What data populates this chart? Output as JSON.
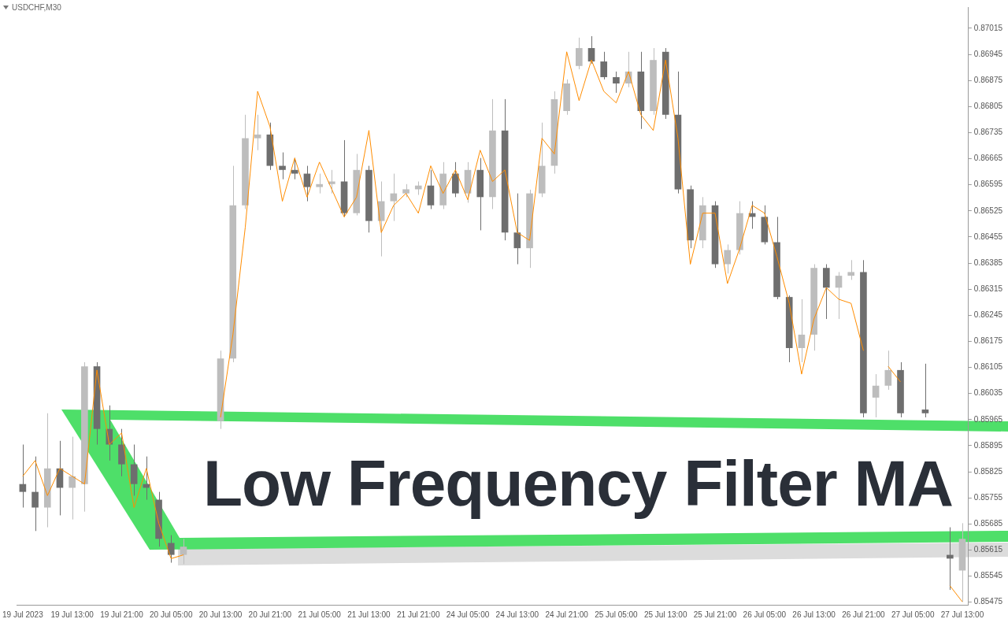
{
  "chart_data": {
    "type": "candlestick",
    "title": "Low Frequency Filter MA",
    "subtitle": "USDCHF,M30",
    "categories": [
      "19 Jul 2023",
      null,
      null,
      null,
      "19 Jul 13:00",
      null,
      null,
      null,
      "19 Jul 21:00",
      null,
      null,
      null,
      "20 Jul 05:00",
      null,
      null,
      null,
      "20 Jul 13:00",
      null,
      null,
      null,
      "20 Jul 21:00",
      null,
      null,
      null,
      "21 Jul 05:00",
      null,
      null,
      null,
      "21 Jul 13:00",
      null,
      null,
      null,
      "21 Jul 21:00",
      null,
      null,
      null,
      "24 Jul 05:00",
      null,
      null,
      null,
      "24 Jul 13:00",
      null,
      null,
      null,
      "24 Jul 21:00",
      null,
      null,
      null,
      "25 Jul 05:00",
      null,
      null,
      null,
      "25 Jul 13:00",
      null,
      null,
      null,
      "25 Jul 21:00",
      null,
      null,
      null,
      "26 Jul 05:00",
      null,
      null,
      null,
      "26 Jul 13:00",
      null,
      null,
      null,
      "26 Jul 21:00",
      null,
      null,
      null,
      "27 Jul 05:00",
      null,
      null,
      null,
      "27 Jul 13:00"
    ],
    "series": [
      {
        "type": "candlestick",
        "ohlc": [
          [
            0.85792,
            0.85898,
            0.85729,
            0.85771
          ],
          [
            0.85771,
            0.85866,
            0.85666,
            0.85729
          ],
          [
            0.85729,
            0.85982,
            0.85676,
            0.85834
          ],
          [
            0.85834,
            0.85908,
            0.85708,
            0.85782
          ],
          [
            0.85782,
            0.85919,
            0.85697,
            0.85813
          ],
          [
            0.85792,
            0.86119,
            0.85718,
            0.86108
          ],
          [
            0.86108,
            0.86119,
            0.85898,
            0.8594
          ],
          [
            0.8594,
            0.86003,
            0.85855,
            0.85898
          ],
          [
            0.85898,
            0.8594,
            0.85813,
            0.85845
          ],
          [
            0.85845,
            0.85898,
            0.85761,
            0.85792
          ],
          [
            0.85792,
            0.85866,
            0.8575,
            0.85782
          ],
          [
            0.8575,
            0.85771,
            0.85624,
            0.85645
          ],
          [
            0.85634,
            0.85655,
            0.85581,
            0.85602
          ],
          [
            0.85602,
            0.85645,
            0.85577,
            0.85624
          ],
          null,
          null,
          [
            0.85961,
            0.8615,
            0.8594,
            0.86129
          ],
          [
            0.86129,
            0.86646,
            0.86119,
            0.8654
          ],
          [
            0.8654,
            0.86783,
            0.8653,
            0.8672
          ],
          [
            0.8672,
            0.86783,
            0.86688,
            0.8673
          ],
          [
            0.8673,
            0.86762,
            0.86635,
            0.86646
          ],
          [
            0.86646,
            0.86682,
            0.8661,
            0.86635
          ],
          [
            0.86635,
            0.86667,
            0.8661,
            0.86625
          ],
          [
            0.86625,
            0.86646,
            0.86551,
            0.86589
          ],
          [
            0.86589,
            0.86625,
            0.86572,
            0.86597
          ],
          [
            0.86597,
            0.86635,
            0.86572,
            0.86604
          ],
          [
            0.86604,
            0.86715,
            0.86509,
            0.86519
          ],
          [
            0.86519,
            0.86678,
            0.86513,
            0.86635
          ],
          [
            0.86635,
            0.86646,
            0.86467,
            0.86498
          ],
          [
            0.86498,
            0.86604,
            0.86403,
            0.86551
          ],
          [
            0.86551,
            0.86625,
            0.86498,
            0.86572
          ],
          [
            0.86572,
            0.86597,
            0.86562,
            0.86583
          ],
          [
            0.86583,
            0.86604,
            0.86568,
            0.86593
          ],
          [
            0.86593,
            0.86635,
            0.8653,
            0.8654
          ],
          [
            0.8654,
            0.86656,
            0.8653,
            0.86625
          ],
          [
            0.86625,
            0.86656,
            0.86562,
            0.86572
          ],
          [
            0.86572,
            0.86656,
            0.86547,
            0.86635
          ],
          [
            0.86635,
            0.86667,
            0.86473,
            0.86562
          ],
          [
            0.86562,
            0.86825,
            0.8653,
            0.86741
          ],
          [
            0.86741,
            0.86825,
            0.86446,
            0.86467
          ],
          [
            0.86467,
            0.86572,
            0.86382,
            0.86425
          ],
          [
            0.86425,
            0.86582,
            0.86372,
            0.86572
          ],
          [
            0.86572,
            0.86762,
            0.86562,
            0.86646
          ],
          [
            0.86646,
            0.86846,
            0.86625,
            0.86825
          ],
          [
            0.86793,
            0.86878,
            0.86783,
            0.86867
          ],
          [
            0.86914,
            0.8699,
            0.86905,
            0.86962
          ],
          [
            0.86962,
            0.86994,
            0.8692,
            0.86926
          ],
          [
            0.86926,
            0.86952,
            0.86878,
            0.86884
          ],
          [
            0.86884,
            0.86899,
            0.86842,
            0.86867
          ],
          [
            0.86867,
            0.86952,
            0.86857,
            0.86899
          ],
          [
            0.86899,
            0.86952,
            0.86745,
            0.86793
          ],
          [
            0.86793,
            0.86962,
            0.86783,
            0.8693
          ],
          [
            0.86952,
            0.86962,
            0.86772,
            0.86783
          ],
          [
            0.86783,
            0.86899,
            0.86572,
            0.86583
          ],
          [
            0.86583,
            0.86593,
            0.86425,
            0.86446
          ],
          [
            0.86446,
            0.86562,
            0.86425,
            0.8654
          ],
          [
            0.8654,
            0.86551,
            0.86372,
            0.86382
          ],
          [
            0.86382,
            0.86435,
            0.86357,
            0.8642
          ],
          [
            0.8642,
            0.86551,
            0.86408,
            0.86519
          ],
          [
            0.86519,
            0.86551,
            0.86477,
            0.86509
          ],
          [
            0.86509,
            0.8654,
            0.86435,
            0.86441
          ],
          [
            0.86441,
            0.86509,
            0.86288,
            0.86294
          ],
          [
            0.86294,
            0.86298,
            0.86119,
            0.86157
          ],
          [
            0.86157,
            0.86288,
            0.86119,
            0.86193
          ],
          [
            0.86193,
            0.86382,
            0.8615,
            0.86372
          ],
          [
            0.86372,
            0.86382,
            0.86235,
            0.86319
          ],
          [
            0.86319,
            0.86361,
            0.86235,
            0.86351
          ],
          [
            0.86351,
            0.86393,
            0.8634,
            0.86361
          ],
          [
            0.86361,
            0.86393,
            0.85971,
            0.85982
          ],
          [
            0.86024,
            0.86087,
            0.85971,
            0.86056
          ],
          [
            0.86056,
            0.8615,
            0.86045,
            0.86098
          ],
          [
            0.86098,
            0.86119,
            0.85971,
            0.85982
          ],
          null,
          [
            0.85992,
            0.86115,
            0.85971,
            0.85982
          ],
          null,
          [
            0.85602,
            0.85676,
            0.85508,
            0.85592
          ],
          [
            0.8556,
            0.85687,
            0.85476,
            0.85645
          ]
        ],
        "colors": [
          "#6e6e6e",
          "#6e6e6e",
          "#bdbdbd",
          "#6e6e6e",
          "#bdbdbd",
          "#bdbdbd",
          "#6e6e6e",
          "#6e6e6e",
          "#6e6e6e",
          "#6e6e6e",
          "#6e6e6e",
          "#6e6e6e",
          "#6e6e6e",
          "#bdbdbd",
          null,
          null,
          "#bdbdbd",
          "#bdbdbd",
          "#bdbdbd",
          "#bdbdbd",
          "#6e6e6e",
          "#6e6e6e",
          "#6e6e6e",
          "#6e6e6e",
          "#bdbdbd",
          "#bdbdbd",
          "#6e6e6e",
          "#bdbdbd",
          "#6e6e6e",
          "#bdbdbd",
          "#bdbdbd",
          "#bdbdbd",
          "#bdbdbd",
          "#6e6e6e",
          "#bdbdbd",
          "#6e6e6e",
          "#bdbdbd",
          "#6e6e6e",
          "#bdbdbd",
          "#6e6e6e",
          "#6e6e6e",
          "#bdbdbd",
          "#bdbdbd",
          "#bdbdbd",
          "#bdbdbd",
          "#bdbdbd",
          "#6e6e6e",
          "#6e6e6e",
          "#6e6e6e",
          "#bdbdbd",
          "#6e6e6e",
          "#bdbdbd",
          "#6e6e6e",
          "#6e6e6e",
          "#6e6e6e",
          "#bdbdbd",
          "#6e6e6e",
          "#bdbdbd",
          "#bdbdbd",
          "#6e6e6e",
          "#6e6e6e",
          "#6e6e6e",
          "#6e6e6e",
          "#bdbdbd",
          "#bdbdbd",
          "#6e6e6e",
          "#bdbdbd",
          "#bdbdbd",
          "#6e6e6e",
          "#bdbdbd",
          "#bdbdbd",
          "#6e6e6e",
          null,
          "#6e6e6e",
          null,
          "#6e6e6e",
          "#bdbdbd"
        ]
      },
      {
        "type": "line",
        "color": "#ff8c00",
        "values": [
          0.85813,
          0.85855,
          0.85761,
          0.85834,
          0.85813,
          0.85792,
          0.86098,
          0.85898,
          0.85929,
          0.85729,
          0.85834,
          0.85687,
          0.85592,
          0.85602,
          null,
          null,
          0.85971,
          0.86193,
          0.86481,
          0.86846,
          0.86751,
          0.86551,
          0.86667,
          0.86562,
          0.86656,
          0.86583,
          0.86509,
          0.86562,
          0.86741,
          0.86467,
          0.8654,
          0.86572,
          0.86519,
          0.86646,
          0.86572,
          0.86635,
          0.86555,
          0.86688,
          0.86604,
          0.86635,
          0.86467,
          0.86446,
          0.8672,
          0.86678,
          0.86952,
          0.86821,
          0.8693,
          0.86846,
          0.86815,
          0.86899,
          0.86783,
          0.86741,
          0.8693,
          0.8672,
          0.86382,
          0.86519,
          0.86519,
          0.8633,
          0.86425,
          0.8654,
          0.86519,
          0.86403,
          0.86277,
          0.86087,
          0.86235,
          0.86319,
          0.86288,
          0.86277,
          0.8615,
          null,
          0.86108,
          0.86066,
          null,
          null,
          null,
          0.85519,
          0.85476
        ]
      }
    ],
    "ylim": [
      0.85468,
      0.87072
    ],
    "yticks": [
      0.85475,
      0.85545,
      0.85615,
      0.85685,
      0.85755,
      0.85825,
      0.85895,
      0.85965,
      0.86035,
      0.86105,
      0.86175,
      0.86245,
      0.86315,
      0.86385,
      0.86455,
      0.86525,
      0.86595,
      0.86665,
      0.86735,
      0.86805,
      0.86875,
      0.86945,
      0.87015
    ]
  }
}
